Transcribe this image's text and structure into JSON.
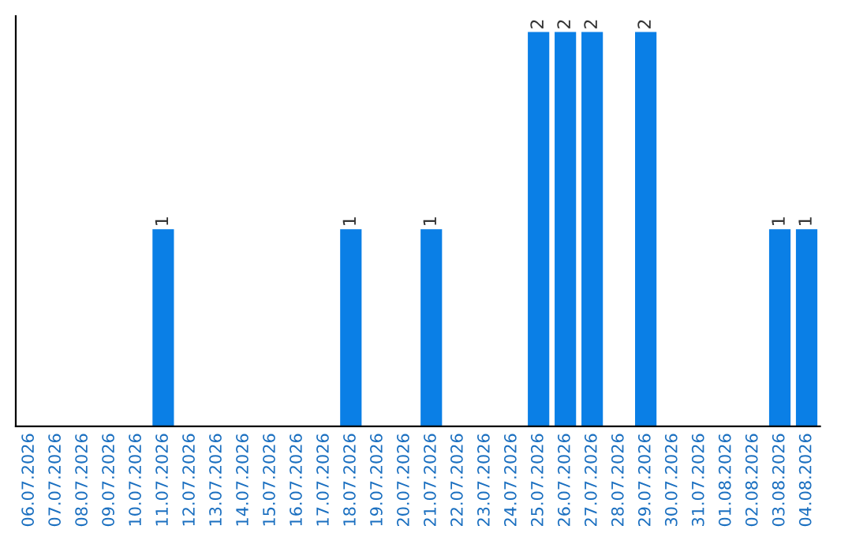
{
  "chart_data": {
    "type": "bar",
    "categories": [
      "06.07.2026",
      "07.07.2026",
      "08.07.2026",
      "09.07.2026",
      "10.07.2026",
      "11.07.2026",
      "12.07.2026",
      "13.07.2026",
      "14.07.2026",
      "15.07.2026",
      "16.07.2026",
      "17.07.2026",
      "18.07.2026",
      "19.07.2026",
      "20.07.2026",
      "21.07.2026",
      "22.07.2026",
      "23.07.2026",
      "24.07.2026",
      "25.07.2026",
      "26.07.2026",
      "27.07.2026",
      "28.07.2026",
      "29.07.2026",
      "30.07.2026",
      "31.07.2026",
      "01.08.2026",
      "02.08.2026",
      "03.08.2026",
      "04.08.2026"
    ],
    "values": [
      0,
      0,
      0,
      0,
      0,
      1,
      0,
      0,
      0,
      0,
      0,
      0,
      1,
      0,
      0,
      1,
      0,
      0,
      0,
      2,
      2,
      2,
      0,
      2,
      0,
      0,
      0,
      0,
      1,
      1
    ],
    "value_labels": [
      null,
      null,
      null,
      null,
      null,
      "1",
      null,
      null,
      null,
      null,
      null,
      null,
      "1",
      null,
      null,
      "1",
      null,
      null,
      null,
      "2",
      "2",
      "2",
      null,
      "2",
      null,
      null,
      null,
      null,
      "1",
      "1"
    ],
    "color": "#0a7fe6",
    "tick_labels": "x",
    "grid": false,
    "legend": false
  }
}
